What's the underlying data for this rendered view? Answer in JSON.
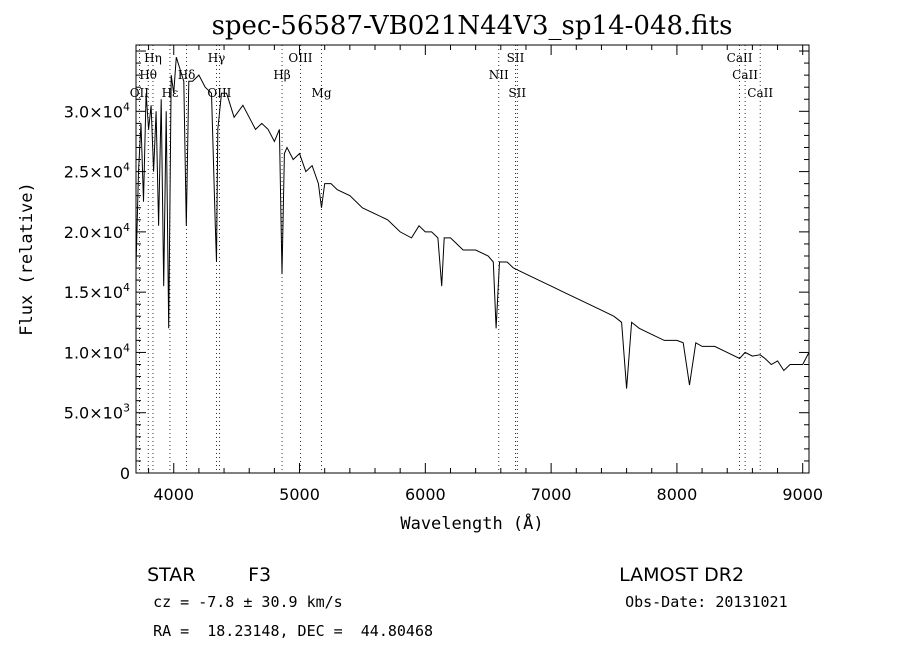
{
  "chart_data": {
    "type": "line",
    "title": "spec-56587-VB021N44V3_sp14-048.fits",
    "xlabel": "Wavelength (Å)",
    "ylabel": "Flux (relative)",
    "xlim": [
      3700,
      9050
    ],
    "ylim": [
      0,
      35500
    ],
    "grid": false,
    "x_ticks": [
      4000,
      5000,
      6000,
      7000,
      8000,
      9000
    ],
    "x_tick_labels": [
      "4000",
      "5000",
      "6000",
      "7000",
      "8000",
      "9000"
    ],
    "y_ticks": [
      0,
      5000,
      10000,
      15000,
      20000,
      25000,
      30000
    ],
    "y_tick_labels": [
      {
        "mant": "0",
        "exp": ""
      },
      {
        "mant": "5.0×10",
        "exp": "3"
      },
      {
        "mant": "1.0×10",
        "exp": "4"
      },
      {
        "mant": "1.5×10",
        "exp": "4"
      },
      {
        "mant": "2.0×10",
        "exp": "4"
      },
      {
        "mant": "2.5×10",
        "exp": "4"
      },
      {
        "mant": "3.0×10",
        "exp": "4"
      }
    ],
    "lines": [
      {
        "label": "Hη",
        "x": 3835,
        "row": 1
      },
      {
        "label": "Hθ",
        "x": 3797,
        "row": 2
      },
      {
        "label": "OII",
        "x": 3727,
        "row": 3
      },
      {
        "label": "Hε",
        "x": 3970,
        "row": 3
      },
      {
        "label": "Hδ",
        "x": 4102,
        "row": 2
      },
      {
        "label": "Hγ",
        "x": 4340,
        "row": 1
      },
      {
        "label": "OIII",
        "x": 4363,
        "row": 3
      },
      {
        "label": "Hβ",
        "x": 4861,
        "row": 2
      },
      {
        "label": "OIII",
        "x": 5007,
        "row": 1
      },
      {
        "label": "Mg",
        "x": 5175,
        "row": 3
      },
      {
        "label": "SII",
        "x": 6717,
        "row": 1
      },
      {
        "label": "NII",
        "x": 6584,
        "row": 2
      },
      {
        "label": "SII",
        "x": 6731,
        "row": 3
      },
      {
        "label": "CaII",
        "x": 8498,
        "row": 1
      },
      {
        "label": "CaII",
        "x": 8542,
        "row": 2
      },
      {
        "label": "CaII",
        "x": 8662,
        "row": 3
      }
    ],
    "series": [
      {
        "x": [
          3700,
          3720,
          3740,
          3760,
          3780,
          3800,
          3820,
          3840,
          3860,
          3880,
          3900,
          3920,
          3940,
          3960,
          3980,
          4000,
          4020,
          4050,
          4080,
          4100,
          4120,
          4150,
          4200,
          4250,
          4300,
          4330,
          4340,
          4350,
          4380,
          4420,
          4480,
          4550,
          4600,
          4650,
          4700,
          4750,
          4800,
          4840,
          4861,
          4880,
          4900,
          4950,
          5000,
          5050,
          5100,
          5150,
          5175,
          5200,
          5250,
          5300,
          5400,
          5500,
          5600,
          5700,
          5800,
          5890,
          5950,
          6000,
          6050,
          6100,
          6130,
          6150,
          6200,
          6250,
          6300,
          6400,
          6500,
          6540,
          6563,
          6590,
          6650,
          6700,
          6800,
          6900,
          7000,
          7100,
          7200,
          7300,
          7400,
          7500,
          7560,
          7600,
          7640,
          7700,
          7800,
          7900,
          8000,
          8050,
          8100,
          8150,
          8200,
          8300,
          8400,
          8498,
          8542,
          8600,
          8662,
          8700,
          8750,
          8800,
          8850,
          8900,
          8950,
          9000,
          9050
        ],
        "y": [
          17000,
          25000,
          29000,
          22500,
          31500,
          28500,
          30500,
          25000,
          30000,
          20500,
          31000,
          15500,
          30000,
          12000,
          33000,
          31500,
          34500,
          33500,
          32500,
          20500,
          32500,
          32500,
          33000,
          32000,
          31500,
          20500,
          17500,
          28500,
          31500,
          31500,
          29500,
          30500,
          29500,
          28500,
          29000,
          28500,
          27500,
          28500,
          16500,
          26500,
          27000,
          26000,
          26500,
          25000,
          25500,
          24000,
          22000,
          24000,
          24000,
          23500,
          23000,
          22000,
          21500,
          21000,
          20000,
          19500,
          20500,
          20000,
          20000,
          19500,
          15500,
          19500,
          19500,
          19000,
          18500,
          18500,
          18000,
          17500,
          12000,
          17500,
          17500,
          17000,
          16500,
          16000,
          15500,
          15000,
          14500,
          14000,
          13500,
          13000,
          12500,
          7000,
          12500,
          12000,
          11500,
          11000,
          11000,
          10800,
          7300,
          10800,
          10500,
          10500,
          10000,
          9500,
          10000,
          9700,
          9800,
          9500,
          9000,
          9300,
          8500,
          9000,
          9000,
          9000,
          10000
        ]
      }
    ]
  },
  "info": {
    "object_type": "STAR",
    "subclass": "F3",
    "survey": "LAMOST DR2",
    "cz": "cz = -7.8 ± 30.9 km/s",
    "obs_date": "Obs-Date: 20131021",
    "coords": "RA =  18.23148, DEC =  44.80468"
  }
}
